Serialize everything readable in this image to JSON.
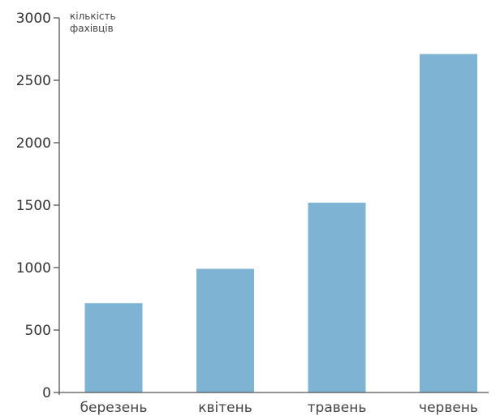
{
  "chart_data": {
    "type": "bar",
    "categories": [
      "березень",
      "квітень",
      "травень",
      "червень"
    ],
    "values": [
      715,
      990,
      1520,
      2710
    ],
    "ylabel_lines": [
      "кількість",
      "фахівців"
    ],
    "ylim": [
      0,
      3000
    ],
    "yticks": [
      0,
      500,
      1000,
      1500,
      2000,
      2500,
      3000
    ],
    "bar_color": "#7fb3d3",
    "grid": false,
    "legend": "none"
  }
}
